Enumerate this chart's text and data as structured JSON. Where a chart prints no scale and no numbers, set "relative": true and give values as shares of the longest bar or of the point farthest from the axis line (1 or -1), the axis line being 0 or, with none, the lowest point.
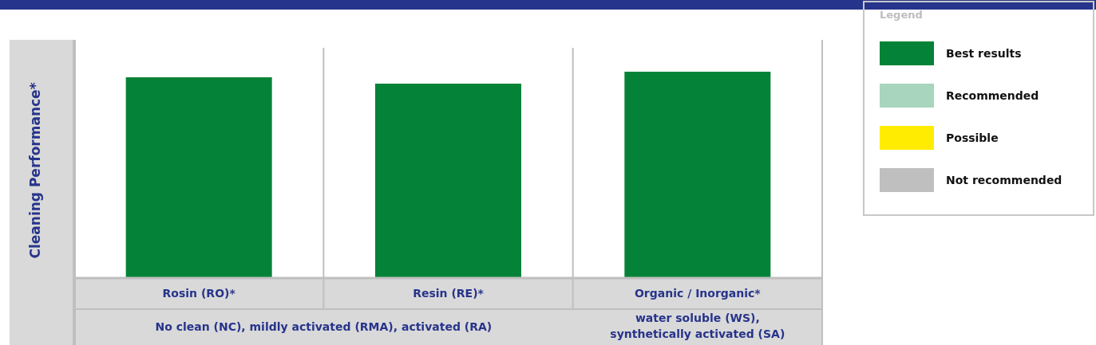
{
  "chart_data": {
    "type": "bar",
    "relative": true,
    "ylabel": "Cleaning Performance*",
    "legend_title": "Legend",
    "legend": "right",
    "categories": [
      "Rosin (RO)*",
      "Resin (RE)*",
      "Organic / Inorganic*"
    ],
    "series": [
      {
        "name": "Best results",
        "color": "#048338",
        "values": [
          0.973,
          0.942,
          1
        ]
      },
      {
        "name": "Recommended",
        "color": "#a8d5bd",
        "values": [
          null,
          null,
          null
        ]
      },
      {
        "name": "Possible",
        "color": "#ffec00",
        "values": [
          null,
          null,
          null
        ]
      },
      {
        "name": "Not recommended",
        "color": "#bfbfbf",
        "values": [
          null,
          null,
          null
        ]
      }
    ],
    "annotations": [
      "No clean (NC), mildly activated (RMA), activated (RA)",
      "water soluble (WS), synthetically activated (SA)"
    ]
  }
}
